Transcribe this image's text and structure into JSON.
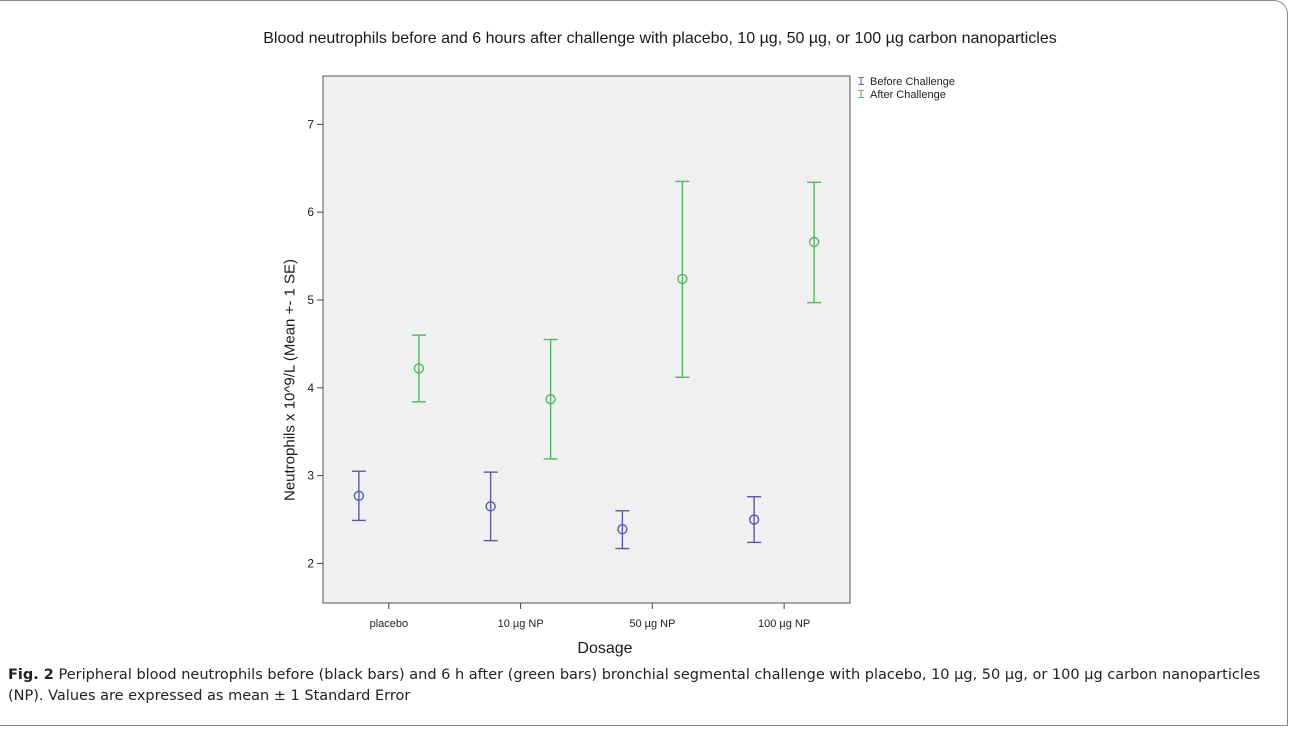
{
  "chart_data": {
    "type": "scatter",
    "title": "Blood neutrophils before and 6 hours after challenge with placebo, 10 µg, 50 µg, or 100 µg carbon nanoparticles",
    "xlabel": "Dosage",
    "ylabel": "Neutrophils x 10^9/L (Mean +- 1 SE)",
    "categories": [
      "placebo",
      "10 µg NP",
      "50 µg NP",
      "100 µg NP"
    ],
    "ylim": [
      1.55,
      7.55
    ],
    "yticks": [
      2,
      3,
      4,
      5,
      6,
      7
    ],
    "legend_position": "top-right, outside plot",
    "grid": false,
    "series": [
      {
        "name": "Before Challenge",
        "color": "#5a5aa8",
        "offset": "left",
        "mean": [
          2.77,
          2.65,
          2.39,
          2.5
        ],
        "lower": [
          2.49,
          2.26,
          2.17,
          2.24
        ],
        "upper": [
          3.05,
          3.04,
          2.6,
          2.76
        ]
      },
      {
        "name": "After Challenge",
        "color": "#59b366",
        "offset": "right",
        "mean": [
          4.22,
          3.87,
          5.24,
          5.66
        ],
        "lower": [
          3.84,
          3.19,
          4.12,
          4.97
        ],
        "upper": [
          4.6,
          4.55,
          6.35,
          6.34
        ]
      }
    ]
  },
  "caption": {
    "label": "Fig. 2",
    "text": " Peripheral blood neutrophils before (black bars) and 6 h after (green bars) bronchial segmental challenge with placebo, 10 µg, 50 µg, or 100 µg carbon nanoparticles (NP). Values are expressed as mean ± 1 Standard Error"
  }
}
